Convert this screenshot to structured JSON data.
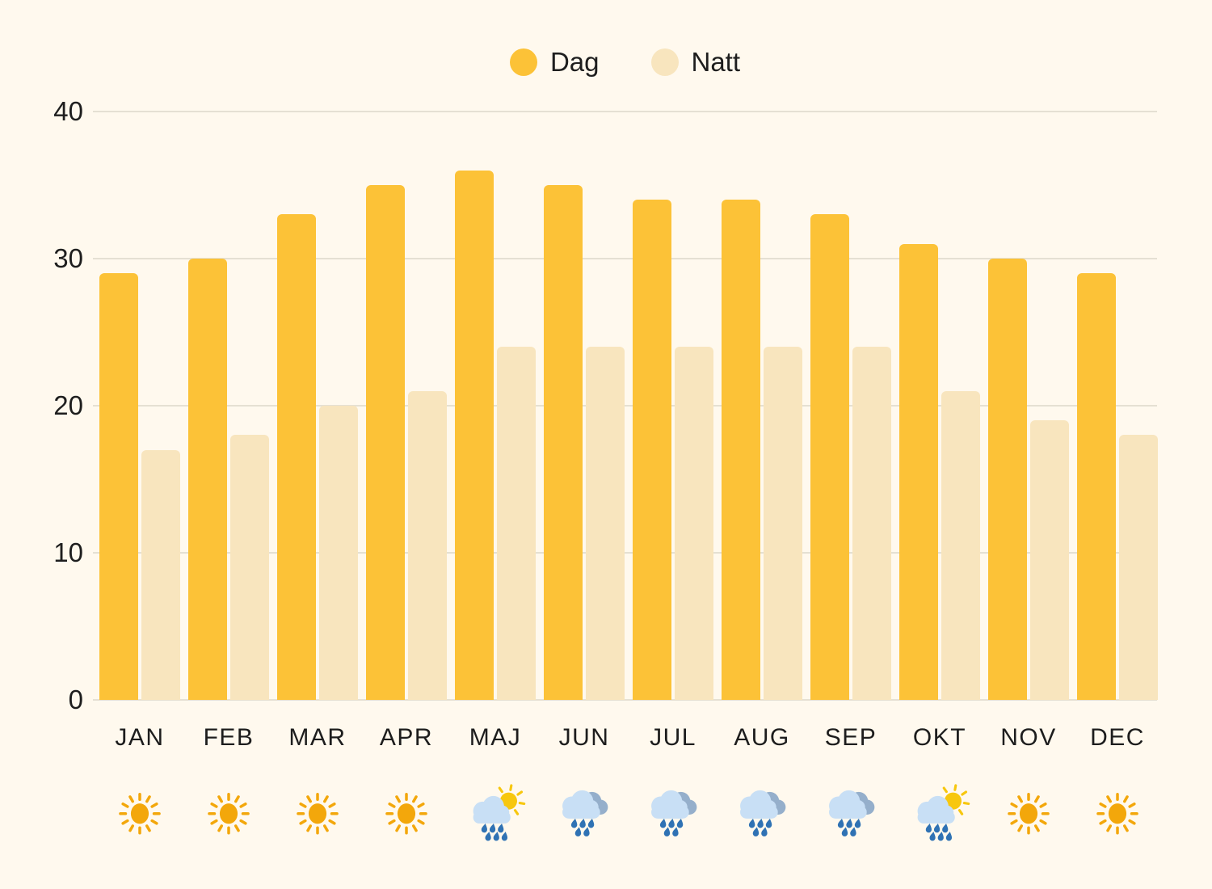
{
  "legend": [
    {
      "label": "Dag",
      "color": "#FCC237"
    },
    {
      "label": "Natt",
      "color": "#F8E5BE"
    }
  ],
  "chart_data": {
    "type": "bar",
    "title": "",
    "categories": [
      "JAN",
      "FEB",
      "MAR",
      "APR",
      "MAJ",
      "JUN",
      "JUL",
      "AUG",
      "SEP",
      "OKT",
      "NOV",
      "DEC"
    ],
    "series": [
      {
        "name": "Dag",
        "color": "#FCC237",
        "values": [
          29,
          30,
          33,
          35,
          36,
          35,
          34,
          34,
          33,
          31,
          30,
          29
        ]
      },
      {
        "name": "Natt",
        "color": "#F8E5BE",
        "values": [
          17,
          18,
          20,
          21,
          24,
          24,
          24,
          24,
          24,
          21,
          19,
          18
        ]
      }
    ],
    "xlabel": "",
    "ylabel": "",
    "ylim": [
      0,
      40
    ],
    "yticks": [
      0,
      10,
      20,
      30,
      40
    ],
    "grid": true,
    "legend_position": "top-center",
    "weather_icons": [
      "sun",
      "sun",
      "sun",
      "sun",
      "sun-rain-cloud",
      "rain-cloud",
      "rain-cloud",
      "rain-cloud",
      "rain-cloud",
      "sun-rain-cloud",
      "sun",
      "sun"
    ]
  },
  "colors": {
    "background": "#FFF9EE",
    "gridline": "#E5E0D3",
    "text": "#1E1E1E",
    "sun_orange": "#F3A70B",
    "sun_yellow": "#F7C70E",
    "cloud_front": "#C8DFF5",
    "cloud_back": "#95AFCB",
    "raindrop": "#2F72B4"
  }
}
